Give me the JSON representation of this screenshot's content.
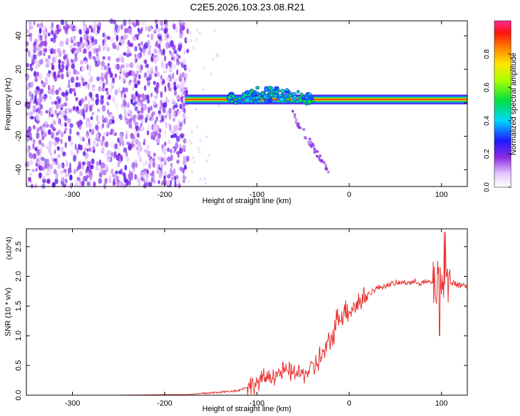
{
  "figure": {
    "title": "C2E5.2026.103.23.08.R21"
  },
  "colors": {
    "snr_line": "#e8302e",
    "axis": "#000000",
    "background": "#ffffff"
  },
  "chart_data": [
    {
      "type": "heatmap",
      "xlabel": "Height of straight line (km)",
      "ylabel": "Frequency (Hz)",
      "xlim": [
        -350,
        128
      ],
      "ylim": [
        -50,
        49
      ],
      "xticks": [
        -300,
        -200,
        -100,
        0,
        100
      ],
      "yticks": [
        -40,
        -20,
        0,
        20,
        40
      ],
      "colorbar": {
        "label": "Normalized spectral amplitude",
        "range": [
          0,
          1
        ],
        "ticks": [
          0.0,
          0.2,
          0.4,
          0.6,
          0.8
        ],
        "colormap": "rainbow (white, violet, blue, cyan, green, yellow, red, magenta)"
      },
      "features": [
        {
          "name": "noise field",
          "x_range": [
            -350,
            -175
          ],
          "freq_range": [
            -50,
            49
          ],
          "amplitude": 0.1
        },
        {
          "name": "carrier band",
          "x_range": [
            -178,
            128
          ],
          "freq_center": 2,
          "amplitude": 0.9
        },
        {
          "name": "perturbed cluster",
          "x_range": [
            -130,
            -40
          ],
          "freq_range": [
            -8,
            12
          ],
          "amplitude": 0.45
        },
        {
          "name": "lower branch",
          "x_range": [
            -60,
            -20
          ],
          "freq_range": [
            -42,
            -5
          ],
          "amplitude": 0.12
        }
      ],
      "grid": false
    },
    {
      "type": "line",
      "xlabel": "Height of straight line (km)",
      "ylabel": "SNR (10 * v/v)",
      "y_multiplier": "(x10^4)",
      "xlim": [
        -350,
        128
      ],
      "ylim": [
        0,
        2.8
      ],
      "xticks": [
        -300,
        -200,
        -100,
        0,
        100
      ],
      "yticks": [
        0.0,
        0.5,
        1.0,
        1.5,
        2.0,
        2.5
      ],
      "series": [
        {
          "x": [
            -350,
            -300,
            -250,
            -200,
            -175,
            -160,
            -140,
            -120,
            -100,
            -90,
            -80,
            -70,
            -60,
            -50,
            -40,
            -30,
            -20,
            -15,
            -10,
            0,
            10,
            20,
            30,
            40,
            50,
            60,
            70,
            80,
            90,
            95,
            100,
            105,
            110,
            120,
            128
          ],
          "y": [
            0.0,
            0.0,
            0.0,
            0.01,
            0.01,
            0.03,
            0.05,
            0.08,
            0.2,
            0.3,
            0.35,
            0.4,
            0.38,
            0.35,
            0.45,
            0.65,
            0.9,
            1.2,
            1.35,
            1.45,
            1.55,
            1.7,
            1.8,
            1.85,
            1.88,
            1.9,
            1.9,
            1.9,
            1.9,
            1.85,
            1.9,
            1.85,
            1.88,
            1.86,
            1.84
          ]
        }
      ],
      "grid": false
    }
  ]
}
